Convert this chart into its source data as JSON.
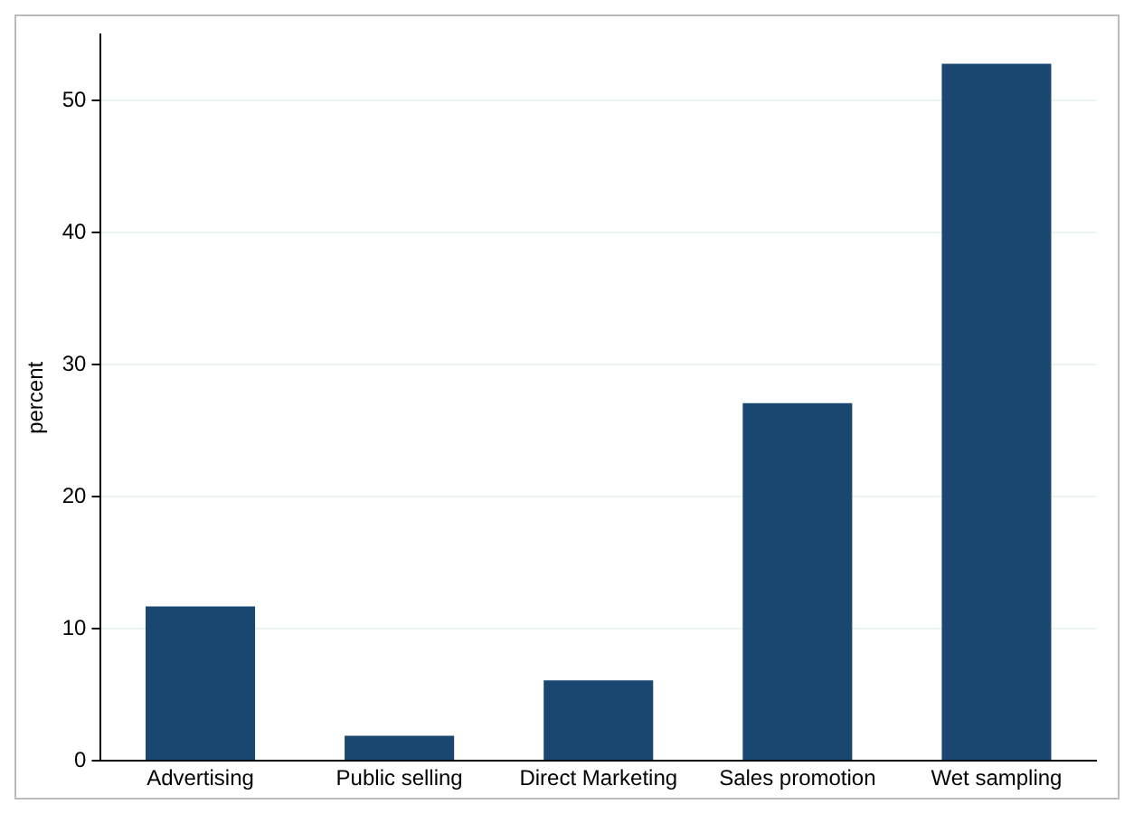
{
  "chart_data": {
    "type": "bar",
    "ylabel": "percent",
    "categories": [
      "Advertising",
      "Public selling",
      "Direct Marketing",
      "Sales promotion",
      "Wet sampling"
    ],
    "values": [
      11.7,
      1.9,
      6.1,
      27.1,
      52.8
    ],
    "color": "#1a476f",
    "ylim": [
      0,
      55
    ],
    "yticks": [
      0,
      10,
      20,
      30,
      40,
      50
    ],
    "grid": "y",
    "legend": false
  }
}
